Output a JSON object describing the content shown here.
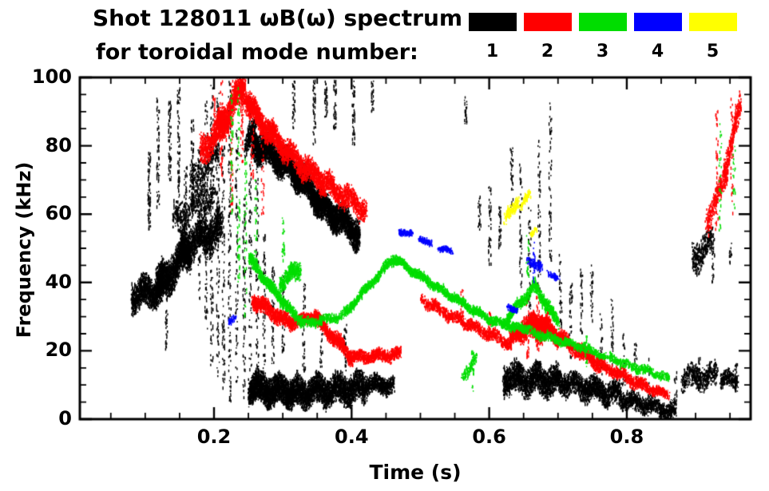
{
  "title": {
    "line1": "Shot 128011 ωB(ω) spectrum",
    "line2": "for toroidal mode number:"
  },
  "legend": {
    "colors": [
      "#000000",
      "#ff0000",
      "#00dd00",
      "#0000ff",
      "#ffff00"
    ],
    "labels": [
      "1",
      "2",
      "3",
      "4",
      "5"
    ]
  },
  "chart_data": {
    "type": "scatter",
    "title": "Shot 128011 ωB(ω) spectrum for toroidal mode number 1-5",
    "xlabel": "Time (s)",
    "ylabel": "Frequency (kHz)",
    "xlim": [
      0.005,
      0.98
    ],
    "ylim": [
      0,
      100
    ],
    "xticks": [
      0.2,
      0.4,
      0.6,
      0.8
    ],
    "xtick_labels": [
      "0.2",
      "0.4",
      "0.6",
      "0.8"
    ],
    "yticks": [
      0,
      20,
      40,
      60,
      80,
      100
    ],
    "ytick_labels": [
      "0",
      "20",
      "40",
      "60",
      "80",
      "100"
    ],
    "x_minor_step": 0.05,
    "y_minor_step": 5,
    "grid": false,
    "legend_position": "top",
    "format": {
      "trace": "[t_start, t_end, f_start_kHz, f_end_kHz, half_width_kHz, n_points]",
      "streak": "[t, f_low_kHz, f_high_kHz, n_points]"
    },
    "series": [
      {
        "name": "1",
        "color": "#000000",
        "traces": [
          [
            0.08,
            0.125,
            36,
            38,
            5,
            1200
          ],
          [
            0.115,
            0.165,
            38,
            50,
            6,
            1800
          ],
          [
            0.15,
            0.21,
            50,
            56,
            6,
            1500
          ],
          [
            0.14,
            0.2,
            58,
            66,
            5,
            500
          ],
          [
            0.165,
            0.205,
            68,
            78,
            6,
            350
          ],
          [
            0.245,
            0.26,
            80,
            85,
            4,
            300
          ],
          [
            0.255,
            0.31,
            81,
            74,
            5,
            2200
          ],
          [
            0.31,
            0.36,
            74,
            62,
            5,
            2200
          ],
          [
            0.36,
            0.41,
            62,
            54,
            5,
            1800
          ],
          [
            0.25,
            0.32,
            9,
            8,
            5,
            2500
          ],
          [
            0.32,
            0.42,
            8,
            9,
            5,
            2500
          ],
          [
            0.42,
            0.46,
            10,
            10,
            3,
            600
          ],
          [
            0.62,
            0.7,
            12,
            11,
            5,
            1800
          ],
          [
            0.7,
            0.79,
            11,
            7,
            4,
            1500
          ],
          [
            0.79,
            0.87,
            6,
            2,
            3,
            900
          ],
          [
            0.88,
            0.93,
            12,
            13,
            4,
            500
          ],
          [
            0.895,
            0.925,
            47,
            52,
            5,
            350
          ],
          [
            0.935,
            0.96,
            11,
            12,
            3,
            250
          ]
        ],
        "streaks": [
          [
            0.105,
            55,
            78,
            70
          ],
          [
            0.118,
            62,
            95,
            60
          ],
          [
            0.13,
            20,
            40,
            40
          ],
          [
            0.135,
            70,
            93,
            60
          ],
          [
            0.148,
            55,
            97,
            80
          ],
          [
            0.158,
            45,
            75,
            50
          ],
          [
            0.168,
            60,
            88,
            60
          ],
          [
            0.178,
            35,
            80,
            70
          ],
          [
            0.188,
            25,
            95,
            90
          ],
          [
            0.196,
            15,
            99,
            110
          ],
          [
            0.205,
            10,
            97,
            110
          ],
          [
            0.213,
            8,
            90,
            100
          ],
          [
            0.222,
            5,
            99,
            120
          ],
          [
            0.232,
            10,
            85,
            80
          ],
          [
            0.243,
            5,
            65,
            80
          ],
          [
            0.252,
            5,
            95,
            100
          ],
          [
            0.262,
            15,
            75,
            70
          ],
          [
            0.272,
            12,
            55,
            60
          ],
          [
            0.285,
            15,
            45,
            50
          ],
          [
            0.3,
            18,
            42,
            40
          ],
          [
            0.315,
            85,
            99,
            40
          ],
          [
            0.33,
            14,
            40,
            40
          ],
          [
            0.345,
            80,
            99,
            50
          ],
          [
            0.355,
            15,
            30,
            30
          ],
          [
            0.362,
            88,
            99,
            35
          ],
          [
            0.375,
            85,
            99,
            40
          ],
          [
            0.39,
            14,
            28,
            30
          ],
          [
            0.402,
            80,
            99,
            45
          ],
          [
            0.43,
            90,
            99,
            25
          ],
          [
            0.565,
            85,
            95,
            25
          ],
          [
            0.585,
            55,
            65,
            25
          ],
          [
            0.6,
            45,
            68,
            40
          ],
          [
            0.615,
            50,
            62,
            30
          ],
          [
            0.632,
            62,
            80,
            35
          ],
          [
            0.645,
            38,
            75,
            50
          ],
          [
            0.658,
            30,
            62,
            45
          ],
          [
            0.672,
            38,
            82,
            55
          ],
          [
            0.688,
            45,
            95,
            60
          ],
          [
            0.703,
            22,
            48,
            40
          ],
          [
            0.718,
            18,
            40,
            35
          ],
          [
            0.733,
            25,
            45,
            35
          ],
          [
            0.748,
            28,
            45,
            30
          ],
          [
            0.762,
            12,
            32,
            30
          ],
          [
            0.778,
            15,
            35,
            30
          ],
          [
            0.795,
            8,
            25,
            25
          ],
          [
            0.812,
            10,
            22,
            25
          ],
          [
            0.832,
            4,
            18,
            20
          ],
          [
            0.87,
            2,
            14,
            20
          ],
          [
            0.905,
            8,
            18,
            25
          ],
          [
            0.925,
            40,
            50,
            20
          ],
          [
            0.95,
            45,
            52,
            15
          ],
          [
            0.958,
            8,
            16,
            20
          ]
        ]
      },
      {
        "name": "2",
        "color": "#ff0000",
        "traces": [
          [
            0.18,
            0.22,
            78,
            88,
            5,
            800
          ],
          [
            0.205,
            0.245,
            85,
            98,
            5,
            1000
          ],
          [
            0.245,
            0.3,
            93,
            79,
            4,
            1400
          ],
          [
            0.3,
            0.36,
            79,
            69,
            4,
            1200
          ],
          [
            0.36,
            0.42,
            69,
            61,
            4,
            900
          ],
          [
            0.255,
            0.31,
            35,
            28,
            2.5,
            900
          ],
          [
            0.31,
            0.345,
            28,
            30,
            2,
            500
          ],
          [
            0.345,
            0.4,
            30,
            18,
            2.5,
            900
          ],
          [
            0.4,
            0.47,
            18,
            19,
            2,
            800
          ],
          [
            0.5,
            0.565,
            35,
            28,
            2,
            500
          ],
          [
            0.565,
            0.63,
            28,
            22,
            2,
            600
          ],
          [
            0.63,
            0.665,
            23,
            29,
            2.5,
            700
          ],
          [
            0.645,
            0.685,
            26,
            27,
            4,
            800
          ],
          [
            0.665,
            0.7,
            29,
            24,
            3,
            900
          ],
          [
            0.7,
            0.76,
            24,
            16,
            2.5,
            900
          ],
          [
            0.76,
            0.83,
            16,
            9,
            2,
            700
          ],
          [
            0.83,
            0.86,
            9,
            7,
            1.5,
            250
          ],
          [
            0.915,
            0.945,
            58,
            72,
            4,
            350
          ],
          [
            0.94,
            0.965,
            72,
            92,
            4,
            350
          ]
        ],
        "streaks": [
          [
            0.2,
            80,
            95,
            30
          ],
          [
            0.21,
            70,
            99,
            50
          ],
          [
            0.225,
            60,
            99,
            60
          ],
          [
            0.24,
            75,
            99,
            50
          ],
          [
            0.255,
            70,
            90,
            35
          ],
          [
            0.27,
            60,
            80,
            25
          ],
          [
            0.56,
            30,
            38,
            15
          ],
          [
            0.6,
            25,
            32,
            15
          ],
          [
            0.655,
            18,
            35,
            30
          ],
          [
            0.67,
            20,
            40,
            30
          ],
          [
            0.93,
            55,
            90,
            40
          ],
          [
            0.952,
            60,
            95,
            40
          ]
        ]
      },
      {
        "name": "3",
        "color": "#00dd00",
        "traces": [
          [
            0.25,
            0.3,
            47,
            34,
            2,
            600
          ],
          [
            0.295,
            0.325,
            40,
            44,
            3,
            400
          ],
          [
            0.3,
            0.33,
            34,
            28,
            2,
            300
          ],
          [
            0.33,
            0.385,
            28,
            30,
            1.5,
            300
          ],
          [
            0.385,
            0.46,
            30,
            47,
            1.5,
            700
          ],
          [
            0.46,
            0.52,
            47,
            39,
            1.5,
            600
          ],
          [
            0.52,
            0.6,
            39,
            29,
            1.5,
            700
          ],
          [
            0.6,
            0.65,
            29,
            26,
            1.5,
            400
          ],
          [
            0.62,
            0.665,
            28,
            39,
            2,
            500
          ],
          [
            0.665,
            0.7,
            39,
            28,
            2,
            450
          ],
          [
            0.65,
            0.72,
            26,
            22,
            1.5,
            400
          ],
          [
            0.72,
            0.8,
            22,
            16,
            1.5,
            400
          ],
          [
            0.8,
            0.86,
            16,
            12,
            1.5,
            300
          ],
          [
            0.56,
            0.58,
            12,
            18,
            2,
            120
          ]
        ],
        "streaks": [
          [
            0.225,
            60,
            95,
            40
          ],
          [
            0.235,
            40,
            97,
            60
          ],
          [
            0.245,
            30,
            80,
            40
          ],
          [
            0.26,
            45,
            75,
            30
          ],
          [
            0.3,
            45,
            60,
            25
          ],
          [
            0.575,
            8,
            20,
            25
          ],
          [
            0.655,
            40,
            55,
            20
          ],
          [
            0.74,
            15,
            25,
            15
          ],
          [
            0.935,
            55,
            88,
            30
          ],
          [
            0.955,
            60,
            80,
            20
          ]
        ]
      },
      {
        "name": "4",
        "color": "#0000ff",
        "traces": [
          [
            0.468,
            0.487,
            55,
            54,
            1,
            120
          ],
          [
            0.497,
            0.515,
            53,
            51,
            1,
            110
          ],
          [
            0.525,
            0.545,
            50,
            49,
            1,
            100
          ],
          [
            0.625,
            0.64,
            33,
            32,
            1,
            90
          ],
          [
            0.655,
            0.675,
            47,
            44,
            1.5,
            110
          ],
          [
            0.685,
            0.7,
            43,
            41,
            1,
            70
          ],
          [
            0.22,
            0.23,
            28,
            30,
            1,
            40
          ]
        ],
        "streaks": [
          [
            0.665,
            40,
            52,
            20
          ]
        ]
      },
      {
        "name": "5",
        "color": "#ffff00",
        "traces": [
          [
            0.622,
            0.642,
            58,
            64,
            2,
            160
          ],
          [
            0.645,
            0.658,
            62,
            66,
            1.5,
            80
          ],
          [
            0.66,
            0.668,
            54,
            56,
            1,
            40
          ]
        ],
        "streaks": []
      }
    ]
  }
}
